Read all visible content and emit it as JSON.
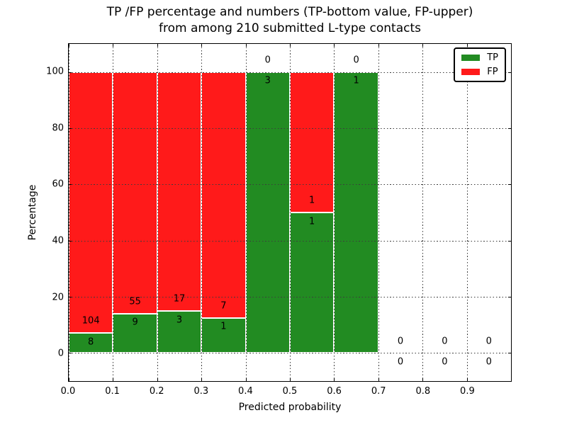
{
  "chart_data": {
    "type": "bar",
    "stacked": true,
    "title_lines": [
      "TP /FP percentage and numbers (TP-bottom value, FP-upper)",
      "from among 210 submitted L-type contacts"
    ],
    "xlabel": "Predicted probability",
    "ylabel": "Percentage",
    "xlim": [
      0.0,
      1.0
    ],
    "ylim": [
      -10,
      110
    ],
    "grid": "dotted",
    "legend_position": "upper-right",
    "bin_width": 0.1,
    "bin_left_edges": [
      0.0,
      0.1,
      0.2,
      0.3,
      0.4,
      0.5,
      0.6,
      0.7,
      0.8,
      0.9
    ],
    "xtick_labels": [
      "0.0",
      "0.1",
      "0.2",
      "0.3",
      "0.4",
      "0.5",
      "0.6",
      "0.7",
      "0.8",
      "0.9"
    ],
    "ytick_labels": [
      "0",
      "20",
      "40",
      "60",
      "80",
      "100"
    ],
    "series": [
      {
        "name": "TP",
        "color": "#228b22",
        "counts": [
          8,
          9,
          3,
          1,
          3,
          1,
          1,
          0,
          0,
          0
        ]
      },
      {
        "name": "FP",
        "color": "#ff1a1a",
        "counts": [
          104,
          55,
          17,
          7,
          0,
          1,
          0,
          0,
          0,
          0
        ]
      }
    ],
    "tp_percent_heights": [
      7.1,
      14.1,
      15.0,
      12.5,
      100.0,
      50.0,
      100.0,
      0.0,
      0.0,
      0.0
    ],
    "total_submitted": 210,
    "legend": {
      "entries": [
        {
          "label": "TP",
          "color": "#228b22"
        },
        {
          "label": "FP",
          "color": "#ff1a1a"
        }
      ]
    },
    "colors": {
      "tp": "#228b22",
      "fp": "#ff1a1a",
      "bar_edge": "#ffffff",
      "grid": "#3c3c3c",
      "spine": "#000000",
      "background": "#ffffff"
    }
  }
}
